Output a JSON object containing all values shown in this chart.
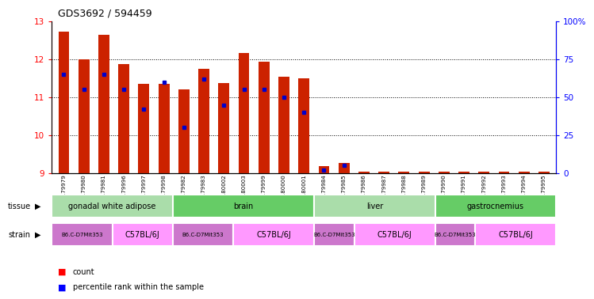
{
  "title": "GDS3692 / 594459",
  "samples": [
    "GSM179979",
    "GSM179980",
    "GSM179981",
    "GSM179996",
    "GSM179997",
    "GSM179998",
    "GSM179982",
    "GSM179983",
    "GSM180002",
    "GSM180003",
    "GSM179999",
    "GSM180000",
    "GSM180001",
    "GSM179984",
    "GSM179985",
    "GSM179986",
    "GSM179987",
    "GSM179988",
    "GSM179989",
    "GSM179990",
    "GSM179991",
    "GSM179992",
    "GSM179993",
    "GSM179994",
    "GSM179995"
  ],
  "count_values": [
    12.72,
    12.0,
    12.65,
    11.88,
    11.35,
    11.35,
    11.2,
    11.75,
    11.38,
    12.17,
    11.93,
    11.55,
    11.5,
    9.18,
    9.28,
    9.05,
    9.05,
    9.05,
    9.05,
    9.05,
    9.05,
    9.05,
    9.05,
    9.05,
    9.05
  ],
  "percentile_values": [
    65,
    55,
    65,
    55,
    42,
    60,
    30,
    62,
    45,
    55,
    55,
    50,
    40,
    2,
    5,
    0,
    0,
    0,
    0,
    0,
    0,
    0,
    0,
    0,
    0
  ],
  "ylim_left": [
    9,
    13
  ],
  "ylim_right": [
    0,
    100
  ],
  "yticks_left": [
    9,
    10,
    11,
    12,
    13
  ],
  "yticks_right": [
    0,
    25,
    50,
    75,
    100
  ],
  "tissue_groups": [
    {
      "label": "gonadal white adipose",
      "start": 0,
      "end": 6
    },
    {
      "label": "brain",
      "start": 6,
      "end": 13
    },
    {
      "label": "liver",
      "start": 13,
      "end": 19
    },
    {
      "label": "gastrocnemius",
      "start": 19,
      "end": 25
    }
  ],
  "tissue_colors": [
    "#aaddaa",
    "#88dd88",
    "#66cc66",
    "#44bb44"
  ],
  "strain_groups": [
    {
      "label": "B6.C-D7Mit353",
      "start": 0,
      "end": 3
    },
    {
      "label": "C57BL/6J",
      "start": 3,
      "end": 6
    },
    {
      "label": "B6.C-D7Mit353",
      "start": 6,
      "end": 9
    },
    {
      "label": "C57BL/6J",
      "start": 9,
      "end": 13
    },
    {
      "label": "B6.C-D7Mit353",
      "start": 13,
      "end": 15
    },
    {
      "label": "C57BL/6J",
      "start": 15,
      "end": 19
    },
    {
      "label": "B6.C-D7Mit353",
      "start": 19,
      "end": 21
    },
    {
      "label": "C57BL/6J",
      "start": 21,
      "end": 25
    }
  ],
  "bar_color": "#cc2200",
  "percentile_color": "#0000cc",
  "bar_bottom": 9.0,
  "bar_width": 0.55,
  "bg_color": "#ffffff",
  "tissue_color_light": "#aaddaa",
  "tissue_color_dark": "#55cc55",
  "strain_color_light": "#ff88ff",
  "strain_color_dark": "#cc55cc"
}
